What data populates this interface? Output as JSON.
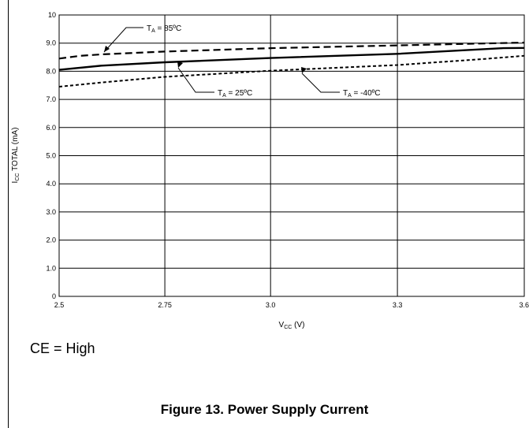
{
  "figure": {
    "caption": "Figure 13. Power Supply Current",
    "condition": "CE = High"
  },
  "chart_data": {
    "type": "line",
    "ylabel_main": "I",
    "ylabel_sub": "CC",
    "ylabel_rest": " TOTAL (mA)",
    "xlabel_main": "V",
    "xlabel_sub": "CC",
    "xlabel_rest": " (V)",
    "xlim": [
      2.5,
      3.6
    ],
    "ylim": [
      0,
      10
    ],
    "x_ticks": [
      {
        "value": 2.5,
        "label": "2.5"
      },
      {
        "value": 2.75,
        "label": "2.75"
      },
      {
        "value": 3.0,
        "label": "3.0"
      },
      {
        "value": 3.3,
        "label": "3.3"
      },
      {
        "value": 3.6,
        "label": "3.6"
      }
    ],
    "y_ticks": [
      {
        "value": 0,
        "label": "0"
      },
      {
        "value": 1,
        "label": "1.0"
      },
      {
        "value": 2,
        "label": "2.0"
      },
      {
        "value": 3,
        "label": "3.0"
      },
      {
        "value": 4,
        "label": "4.0"
      },
      {
        "value": 5,
        "label": "5.0"
      },
      {
        "value": 6,
        "label": "6.0"
      },
      {
        "value": 7,
        "label": "7.0"
      },
      {
        "value": 8,
        "label": "8.0"
      },
      {
        "value": 9,
        "label": "9.0"
      },
      {
        "value": 10,
        "label": "10"
      }
    ],
    "grid": true,
    "series": [
      {
        "key": "ta-85",
        "label_pre": "T",
        "label_sub": "A",
        "label_post": " = 85ºC",
        "style": "dashed",
        "x": [
          2.5,
          2.55,
          2.6,
          2.75,
          3.0,
          3.3,
          3.6
        ],
        "y": [
          8.45,
          8.55,
          8.6,
          8.7,
          8.82,
          8.92,
          9.02
        ]
      },
      {
        "key": "ta-25",
        "label_pre": "T",
        "label_sub": "A",
        "label_post": " = 25ºC",
        "style": "solid",
        "x": [
          2.5,
          2.6,
          2.75,
          3.0,
          3.3,
          3.55,
          3.6
        ],
        "y": [
          8.05,
          8.2,
          8.32,
          8.47,
          8.62,
          8.82,
          8.83
        ]
      },
      {
        "key": "ta-m40",
        "label_pre": "T",
        "label_sub": "A",
        "label_post": " = -40ºC",
        "style": "dotted",
        "x": [
          2.5,
          2.6,
          2.75,
          3.0,
          3.3,
          3.5,
          3.6
        ],
        "y": [
          7.45,
          7.6,
          7.8,
          8.02,
          8.22,
          8.43,
          8.55
        ]
      }
    ]
  }
}
